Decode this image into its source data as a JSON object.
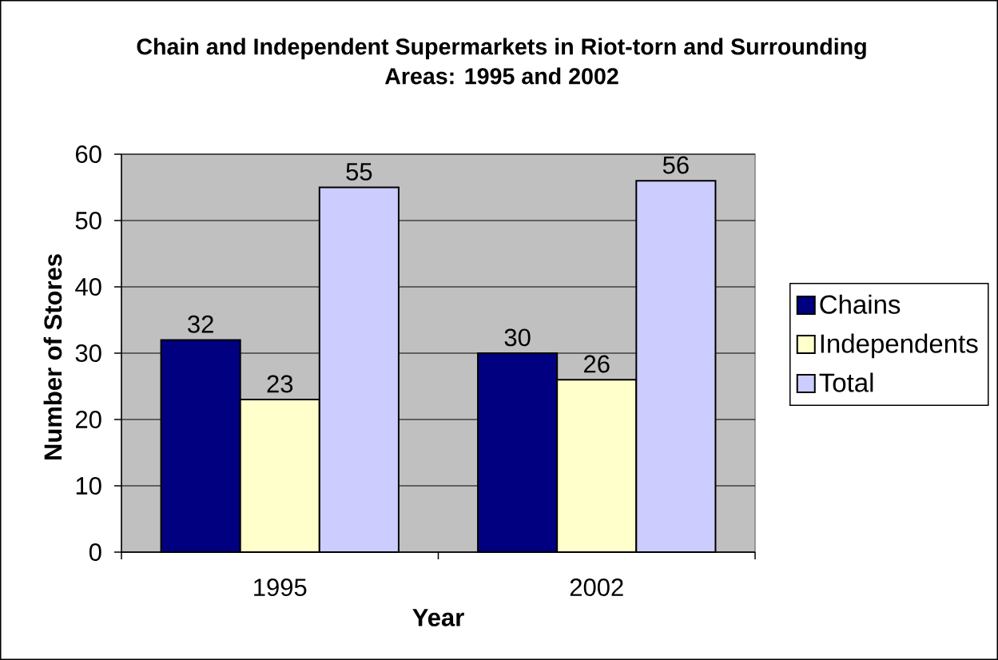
{
  "chart_data": {
    "type": "bar",
    "title": "Chain and Independent Supermarkets in Riot-torn and Surrounding Areas: 1995 and 2002",
    "xlabel": "Year",
    "ylabel": "Number of Stores",
    "categories": [
      "1995",
      "2002"
    ],
    "series": [
      {
        "name": "Chains",
        "color": "#000080",
        "values": [
          32,
          30
        ]
      },
      {
        "name": "Independents",
        "color": "#ffffcc",
        "values": [
          23,
          26
        ]
      },
      {
        "name": "Total",
        "color": "#ccccff",
        "values": [
          55,
          56
        ]
      }
    ],
    "ylim": [
      0,
      60
    ],
    "yticks": [
      0,
      10,
      20,
      30,
      40,
      50,
      60
    ],
    "grid": "y",
    "legend": "right",
    "data_labels": true
  }
}
